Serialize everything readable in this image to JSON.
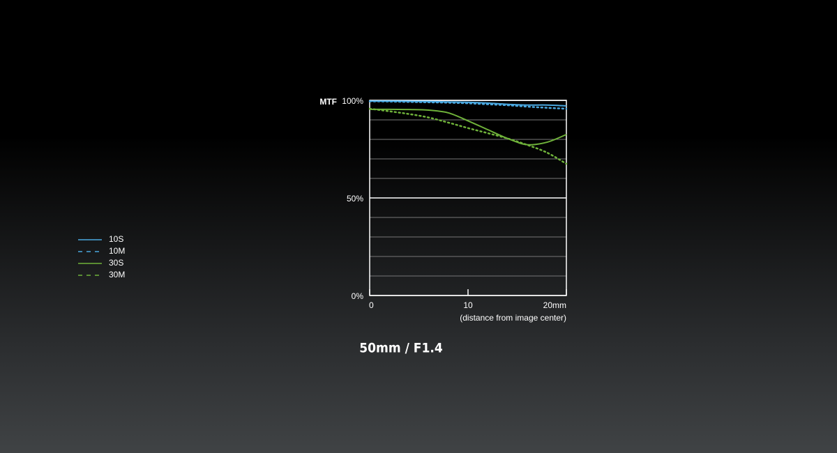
{
  "chart_data": {
    "type": "line",
    "title": "50mm / F1.4",
    "y_axis_label": "MTF",
    "x_axis_label": "(distance from image center)",
    "x": [
      0,
      2,
      4,
      6,
      8,
      10,
      12,
      14,
      16,
      18,
      20
    ],
    "series": [
      {
        "name": "10S",
        "color": "#4aa8e0",
        "dash": "solid",
        "values": [
          99.6,
          99.6,
          99.5,
          99.4,
          99.2,
          99,
          98.6,
          98,
          97.6,
          97.6,
          97.2
        ]
      },
      {
        "name": "10M",
        "color": "#4aa8e0",
        "dash": "dotted",
        "values": [
          99.5,
          99.4,
          99.2,
          99,
          98.8,
          98.5,
          98,
          97.5,
          96.8,
          96.2,
          95.7
        ]
      },
      {
        "name": "30S",
        "color": "#6fb23a",
        "dash": "solid",
        "values": [
          95.4,
          95.4,
          95.3,
          95,
          93.6,
          89.5,
          85,
          80.5,
          77.3,
          78.5,
          82.5
        ]
      },
      {
        "name": "30M",
        "color": "#6fb23a",
        "dash": "dotted",
        "values": [
          95.7,
          94.4,
          93,
          91.2,
          88.6,
          85.8,
          83.2,
          80.5,
          77.2,
          73.3,
          67.5
        ]
      }
    ],
    "xlim": [
      0,
      20
    ],
    "xticks": [
      0,
      10,
      {
        "value": 20,
        "label": "20mm"
      }
    ],
    "ylim": [
      0,
      100
    ],
    "yticks": [
      {
        "value": 0,
        "label": "0%"
      },
      {
        "value": 50,
        "label": "50%"
      },
      {
        "value": 100,
        "label": "100%"
      }
    ],
    "grid_lines": [
      10,
      20,
      30,
      40,
      60,
      70,
      80,
      90
    ],
    "grid": true,
    "legend": "left"
  }
}
